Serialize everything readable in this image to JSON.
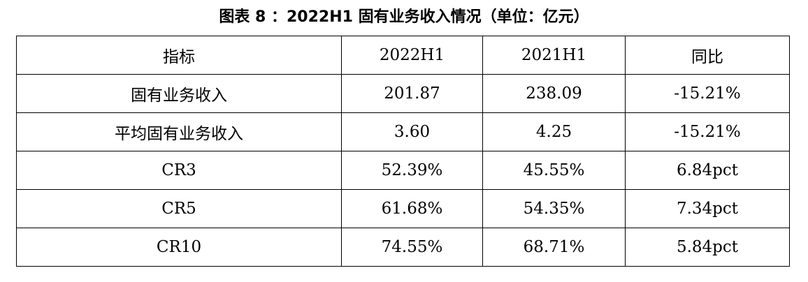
{
  "title": "图表 8 ：2022H1 固有业务收入情况（单位：亿元）",
  "table": {
    "headers": [
      "指标",
      "2022H1",
      "2021H1",
      "同比"
    ],
    "rows": [
      [
        "固有业务收入",
        "201.87",
        "238.09",
        "-15.21%"
      ],
      [
        "平均固有业务收入",
        "3.60",
        "4.25",
        "-15.21%"
      ],
      [
        "CR3",
        "52.39%",
        "45.55%",
        "6.84pct"
      ],
      [
        "CR5",
        "61.68%",
        "54.35%",
        "7.34pct"
      ],
      [
        "CR10",
        "74.55%",
        "68.71%",
        "5.84pct"
      ]
    ]
  }
}
